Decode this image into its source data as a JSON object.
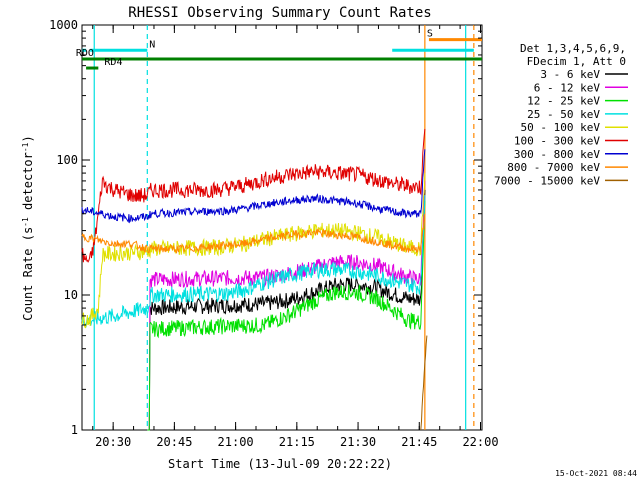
{
  "chart_data": {
    "type": "line",
    "title": "RHESSI Observing Summary Count Rates",
    "xlabel": "Start Time (13-Jul-09 20:22:22)",
    "ylabel_main": "Count Rate (s",
    "ylabel_sup1": "-1",
    "ylabel_mid": " detector",
    "ylabel_sup2": "-1",
    "ylabel_end": ")",
    "x_ticks": [
      "20:30",
      "20:45",
      "21:00",
      "21:15",
      "21:30",
      "21:45",
      "22:00"
    ],
    "y_ticks": [
      "1",
      "10",
      "100",
      "1000"
    ],
    "y_scale": "log",
    "ylim": [
      1,
      1000
    ],
    "xlim_minutes": [
      0,
      98
    ],
    "legend_header": [
      "Det 1,3,4,5,6,9,",
      "FDecim 1, Att 0"
    ],
    "series": [
      {
        "name": "3 - 6 keV",
        "color": "#000000",
        "points": [
          [
            16,
            0
          ],
          [
            17,
            8
          ],
          [
            45,
            8.6
          ],
          [
            51,
            9.2
          ],
          [
            57,
            10.5
          ],
          [
            62,
            11.8
          ],
          [
            67,
            12
          ],
          [
            72,
            11.3
          ],
          [
            77,
            10
          ],
          [
            80,
            9.4
          ],
          [
            83,
            9.3
          ],
          [
            84,
            60
          ]
        ]
      },
      {
        "name": "6 - 12 keV",
        "color": "#e000e0",
        "points": [
          [
            16,
            0
          ],
          [
            17,
            13
          ],
          [
            45,
            13.5
          ],
          [
            51,
            14.5
          ],
          [
            57,
            16
          ],
          [
            62,
            17.5
          ],
          [
            67,
            17.5
          ],
          [
            72,
            16.5
          ],
          [
            77,
            14.5
          ],
          [
            80,
            13.5
          ],
          [
            83,
            13
          ],
          [
            84,
            70
          ]
        ]
      },
      {
        "name": "12 - 25 keV",
        "color": "#00e000",
        "points": [
          [
            16,
            0
          ],
          [
            17,
            5.6
          ],
          [
            45,
            6
          ],
          [
            51,
            7.2
          ],
          [
            57,
            9
          ],
          [
            62,
            10.5
          ],
          [
            67,
            10.5
          ],
          [
            72,
            9.5
          ],
          [
            77,
            7.5
          ],
          [
            80,
            6.5
          ],
          [
            83,
            6.3
          ],
          [
            84,
            50
          ]
        ]
      },
      {
        "name": "25 - 50 keV",
        "color": "#00e0e0",
        "points": [
          [
            0,
            6.5
          ],
          [
            3,
            6.6
          ],
          [
            5,
            6.8
          ],
          [
            7,
            6.9
          ],
          [
            8,
            7
          ],
          [
            16,
            8
          ],
          [
            17,
            10
          ],
          [
            33,
            10.2
          ],
          [
            36,
            10.3
          ],
          [
            40,
            11
          ],
          [
            45,
            12.5
          ],
          [
            51,
            14
          ],
          [
            57,
            15.3
          ],
          [
            62,
            15.5
          ],
          [
            67,
            15
          ],
          [
            72,
            14
          ],
          [
            77,
            12.5
          ],
          [
            80,
            12
          ],
          [
            83,
            11.5
          ],
          [
            84,
            55
          ]
        ]
      },
      {
        "name": "50 - 100 keV",
        "color": "#e0e000",
        "points": [
          [
            0,
            6.5
          ],
          [
            2,
            6.7
          ],
          [
            4,
            8
          ],
          [
            5,
            20
          ],
          [
            16,
            21
          ],
          [
            17,
            22
          ],
          [
            33,
            22.5
          ],
          [
            40,
            24
          ],
          [
            45,
            26
          ],
          [
            51,
            28
          ],
          [
            57,
            30
          ],
          [
            62,
            30
          ],
          [
            67,
            29
          ],
          [
            72,
            27
          ],
          [
            77,
            24
          ],
          [
            80,
            22.5
          ],
          [
            83,
            22
          ],
          [
            84,
            80
          ]
        ]
      },
      {
        "name": "100 - 300 keV",
        "color": "#e00000",
        "points": [
          [
            0,
            20
          ],
          [
            1,
            18
          ],
          [
            2,
            18
          ],
          [
            3,
            24
          ],
          [
            4,
            40
          ],
          [
            5,
            70
          ],
          [
            6,
            65
          ],
          [
            8,
            60
          ],
          [
            12,
            55
          ],
          [
            14,
            54
          ],
          [
            16,
            55
          ],
          [
            17,
            60
          ],
          [
            25,
            60
          ],
          [
            33,
            60
          ],
          [
            36,
            62
          ],
          [
            40,
            65
          ],
          [
            45,
            72
          ],
          [
            51,
            78
          ],
          [
            57,
            82
          ],
          [
            62,
            80
          ],
          [
            67,
            78
          ],
          [
            72,
            72
          ],
          [
            77,
            66
          ],
          [
            80,
            64
          ],
          [
            83,
            63
          ],
          [
            84,
            170
          ]
        ]
      },
      {
        "name": "300 - 800 keV",
        "color": "#0000d0",
        "points": [
          [
            0,
            43
          ],
          [
            3,
            41
          ],
          [
            5,
            40
          ],
          [
            8,
            38
          ],
          [
            12,
            37
          ],
          [
            16,
            38
          ],
          [
            17,
            40
          ],
          [
            25,
            41
          ],
          [
            33,
            42
          ],
          [
            36,
            42
          ],
          [
            40,
            44
          ],
          [
            45,
            47
          ],
          [
            51,
            50
          ],
          [
            57,
            52
          ],
          [
            62,
            50
          ],
          [
            67,
            48
          ],
          [
            72,
            44
          ],
          [
            77,
            41
          ],
          [
            80,
            40
          ],
          [
            83,
            40
          ],
          [
            84,
            120
          ]
        ]
      },
      {
        "name": "800 - 7000 keV",
        "color": "#ff8800",
        "points": [
          [
            0,
            27
          ],
          [
            3,
            26
          ],
          [
            5,
            25
          ],
          [
            8,
            24
          ],
          [
            12,
            24
          ],
          [
            16,
            22
          ],
          [
            17,
            22
          ],
          [
            25,
            22
          ],
          [
            33,
            23
          ],
          [
            40,
            24
          ],
          [
            45,
            26
          ],
          [
            51,
            28
          ],
          [
            57,
            29
          ],
          [
            62,
            28
          ],
          [
            67,
            27
          ],
          [
            72,
            25
          ],
          [
            77,
            23
          ],
          [
            80,
            22
          ],
          [
            83,
            22
          ],
          [
            84,
            40
          ]
        ]
      },
      {
        "name": "7000 - 15000 keV",
        "color": "#a06000",
        "points": [
          [
            83,
            1
          ],
          [
            84,
            3
          ],
          [
            84.5,
            5
          ]
        ]
      }
    ],
    "flags": [
      {
        "name": "SAA",
        "color": "#00e0e0",
        "segments": [
          [
            0,
            1,
            650
          ],
          [
            2,
            16,
            650
          ],
          [
            76,
            96,
            650
          ]
        ],
        "label": "N",
        "label_x": 16
      },
      {
        "name": "ATT",
        "color": "#ff8800",
        "segments": [
          [
            85,
            98,
            780
          ]
        ],
        "label": "S",
        "label_x": 84
      },
      {
        "name": "RDO",
        "color": "#008000",
        "segments": [
          [
            0,
            98,
            560
          ]
        ],
        "label": "RDO",
        "label_x": -2
      },
      {
        "name": "RD4",
        "color": "#008000",
        "segments": [
          [
            1,
            4,
            480
          ]
        ],
        "label": "RD4",
        "label_x": 5
      }
    ],
    "vertical_lines": [
      {
        "color": "#00e0e0",
        "x": 3,
        "dashed": false
      },
      {
        "color": "#00e0e0",
        "x": 16,
        "dashed": true
      },
      {
        "color": "#ff8800",
        "x": 84,
        "dashed": false
      },
      {
        "color": "#00e0e0",
        "x": 94,
        "dashed": false
      },
      {
        "color": "#ff8800",
        "x": 96,
        "dashed": true
      }
    ]
  },
  "footer": {
    "timestamp": "15-Oct-2021 08:44"
  }
}
